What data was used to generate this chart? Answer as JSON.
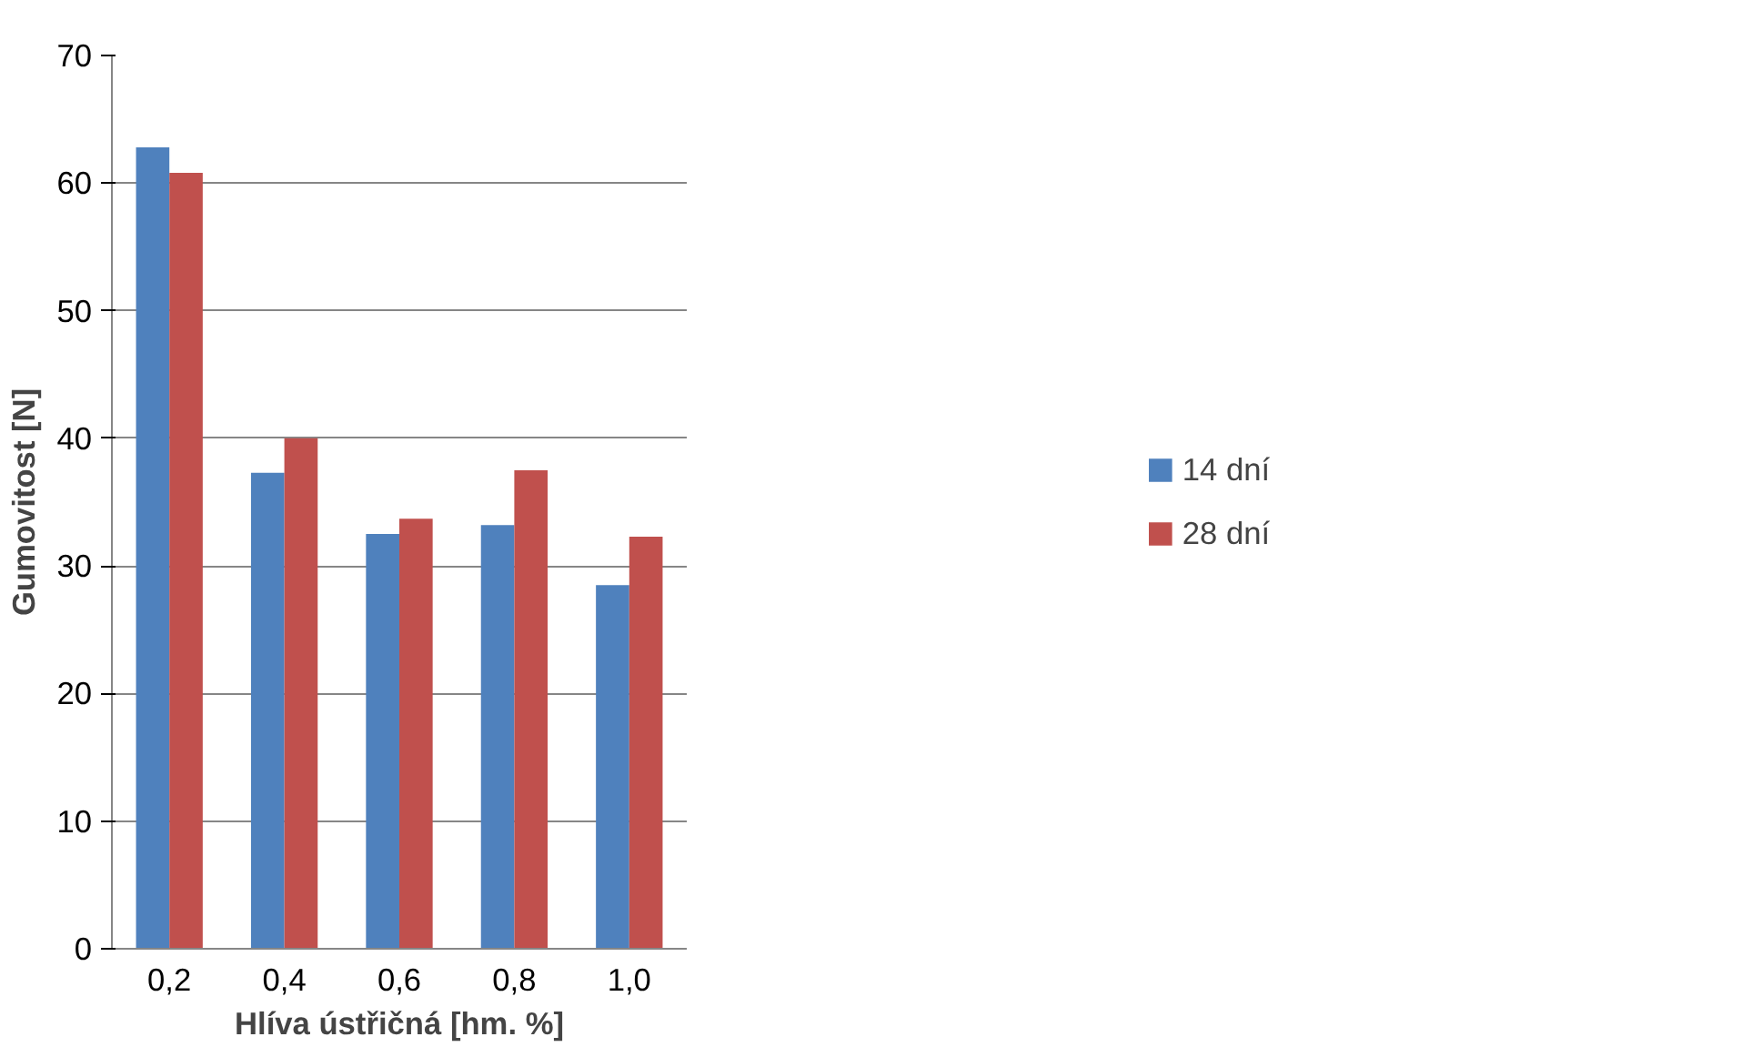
{
  "chart_data": {
    "type": "bar",
    "xlabel": "Hlíva ústřičná [hm. %]",
    "ylabel": "Gumovitost [N]",
    "categories": [
      "0,2",
      "0,4",
      "0,6",
      "0,8",
      "1,0"
    ],
    "series": [
      {
        "name": "14 dní",
        "color": "#4f81bd",
        "values": [
          62.8,
          37.3,
          32.5,
          33.2,
          28.5
        ]
      },
      {
        "name": "28 dní",
        "color": "#c0504d",
        "values": [
          60.8,
          40.0,
          33.7,
          37.5,
          32.3
        ]
      }
    ],
    "ylim": [
      0,
      70
    ],
    "yticks": [
      0,
      10,
      20,
      30,
      40,
      50,
      60,
      70
    ],
    "grid": "y",
    "legend": "right"
  }
}
